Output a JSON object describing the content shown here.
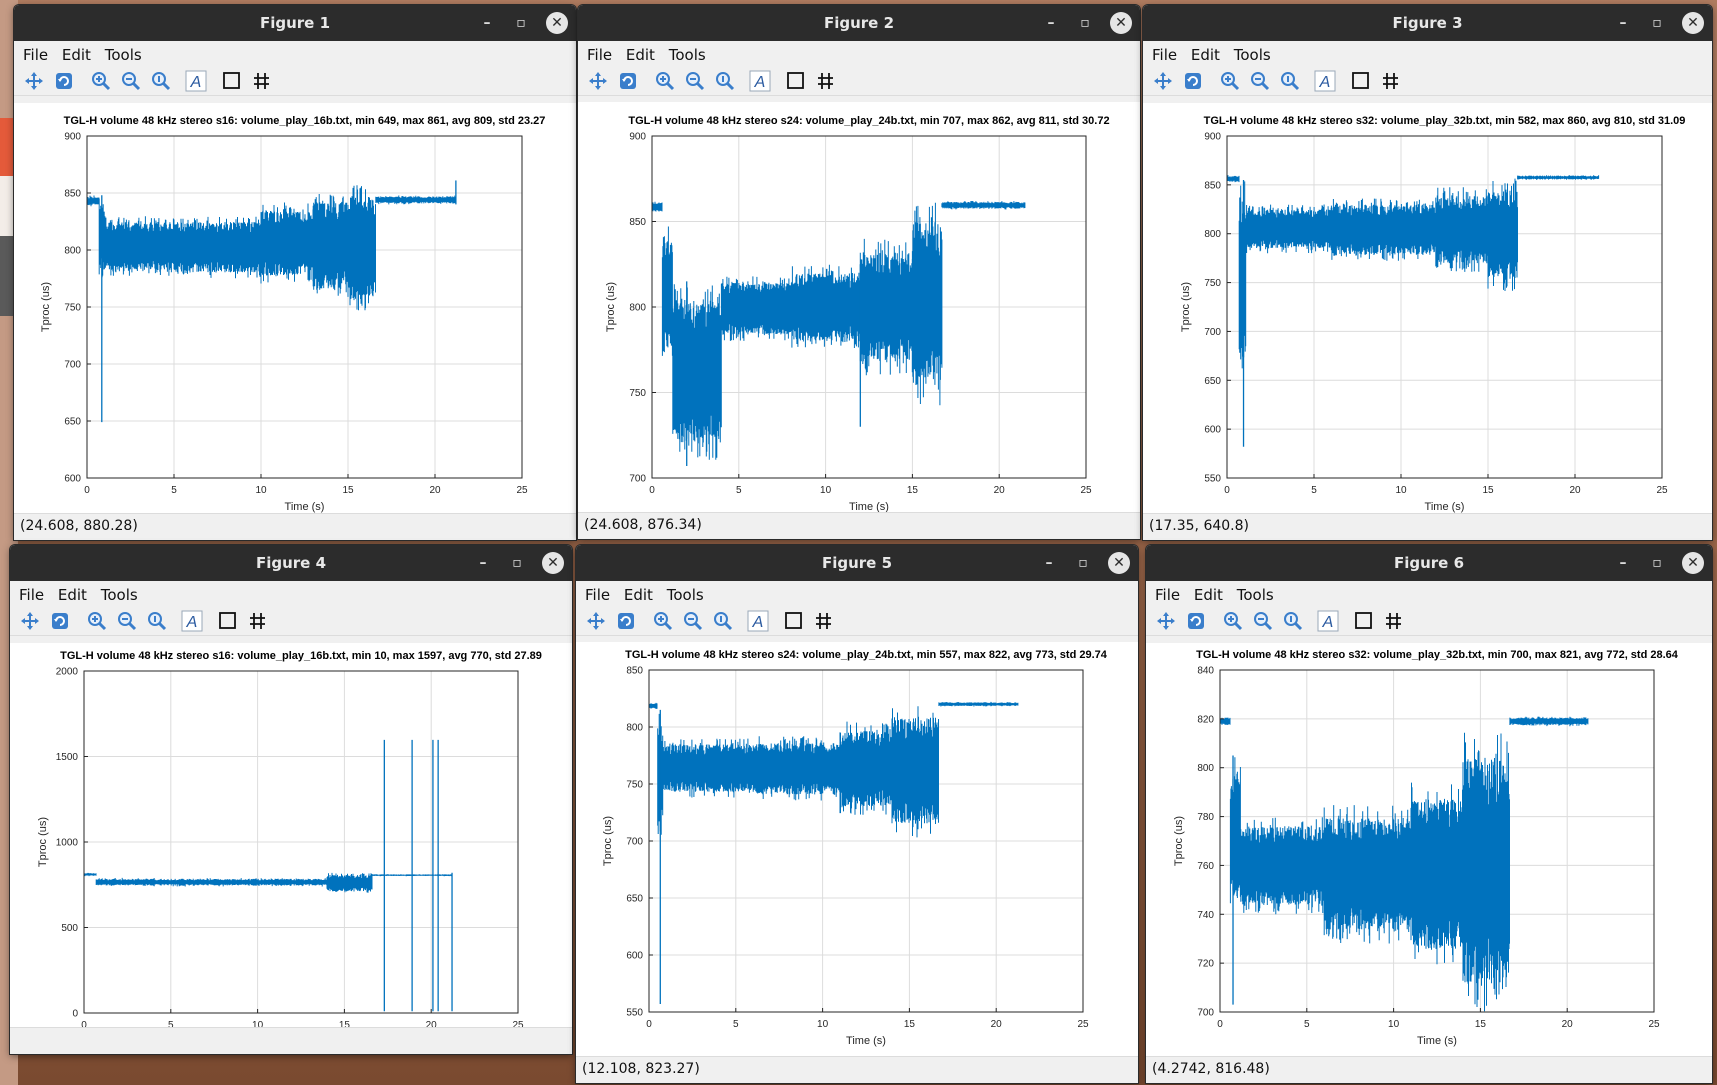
{
  "menu": {
    "file": "File",
    "edit": "Edit",
    "tools": "Tools"
  },
  "colors": {
    "series": "#0072bd",
    "titlebar": "#2c2c2c"
  },
  "figures": [
    {
      "title": "Figure 1",
      "status": "(24.608, 880.28)",
      "chart_data": {
        "type": "line",
        "title": "TGL-H volume 48 kHz stereo s16: volume_play_16b.txt, min  649, max  861, avg  809, std 23.27",
        "xlabel": "Time (s)",
        "ylabel": "Tproc (us)",
        "xlim": [
          0,
          25
        ],
        "ylim": [
          600,
          900
        ],
        "xticks": [
          0,
          5,
          10,
          15,
          20,
          25
        ],
        "yticks": [
          600,
          650,
          700,
          750,
          800,
          850,
          900
        ],
        "grid": true,
        "series": [
          {
            "segments": [
              {
                "x0": 0,
                "x1": 0.7,
                "lo": 838,
                "hi": 848
              },
              {
                "x0": 0.7,
                "x1": 1.0,
                "lo": 775,
                "hi": 848
              },
              {
                "x0": 1.0,
                "x1": 5,
                "lo": 777,
                "hi": 830
              },
              {
                "x0": 5,
                "x1": 10,
                "lo": 775,
                "hi": 830
              },
              {
                "x0": 10,
                "x1": 13,
                "lo": 770,
                "hi": 842
              },
              {
                "x0": 13,
                "x1": 15,
                "lo": 755,
                "hi": 852
              },
              {
                "x0": 15,
                "x1": 16.6,
                "lo": 745,
                "hi": 858
              },
              {
                "x0": 16.6,
                "x1": 21.2,
                "lo": 840,
                "hi": 848
              }
            ],
            "spikes": [
              {
                "x": 0.85,
                "y": 649
              },
              {
                "x": 21.2,
                "y": 861
              }
            ]
          }
        ]
      }
    },
    {
      "title": "Figure 2",
      "status": "(24.608, 876.34)",
      "chart_data": {
        "type": "line",
        "title": "TGL-H volume 48 kHz stereo s24: volume_play_24b.txt, min  707, max  862, avg  811, std 30.72",
        "xlabel": "Time (s)",
        "ylabel": "Tproc (us)",
        "xlim": [
          0,
          25
        ],
        "ylim": [
          700,
          900
        ],
        "xticks": [
          0,
          5,
          10,
          15,
          20,
          25
        ],
        "yticks": [
          700,
          750,
          800,
          850,
          900
        ],
        "grid": true,
        "series": [
          {
            "segments": [
              {
                "x0": 0,
                "x1": 0.6,
                "lo": 855,
                "hi": 862
              },
              {
                "x0": 0.6,
                "x1": 1.2,
                "lo": 765,
                "hi": 850
              },
              {
                "x0": 1.2,
                "x1": 4.0,
                "lo": 710,
                "hi": 815
              },
              {
                "x0": 4.0,
                "x1": 8,
                "lo": 780,
                "hi": 818
              },
              {
                "x0": 8,
                "x1": 12,
                "lo": 775,
                "hi": 825
              },
              {
                "x0": 12,
                "x1": 15,
                "lo": 760,
                "hi": 840
              },
              {
                "x0": 15,
                "x1": 16.7,
                "lo": 742,
                "hi": 862
              },
              {
                "x0": 16.7,
                "x1": 21.5,
                "lo": 857,
                "hi": 862
              }
            ],
            "spikes": [
              {
                "x": 2.0,
                "y": 707
              },
              {
                "x": 12.0,
                "y": 730
              }
            ]
          }
        ]
      }
    },
    {
      "title": "Figure 3",
      "status": "(17.35, 640.8)",
      "chart_data": {
        "type": "line",
        "title": "TGL-H volume 48 kHz stereo s32: volume_play_32b.txt, min  582, max  860, avg  810, std 31.09",
        "xlabel": "Time (s)",
        "ylabel": "Tproc (us)",
        "xlim": [
          0,
          25
        ],
        "ylim": [
          550,
          900
        ],
        "xticks": [
          0,
          5,
          10,
          15,
          20,
          25
        ],
        "yticks": [
          550,
          600,
          650,
          700,
          750,
          800,
          850,
          900
        ],
        "grid": true,
        "series": [
          {
            "segments": [
              {
                "x0": 0,
                "x1": 0.7,
                "lo": 852,
                "hi": 860
              },
              {
                "x0": 0.7,
                "x1": 1.1,
                "lo": 640,
                "hi": 855
              },
              {
                "x0": 1.1,
                "x1": 6,
                "lo": 780,
                "hi": 830
              },
              {
                "x0": 6,
                "x1": 12,
                "lo": 772,
                "hi": 836
              },
              {
                "x0": 12,
                "x1": 15,
                "lo": 760,
                "hi": 848
              },
              {
                "x0": 15,
                "x1": 16.7,
                "lo": 740,
                "hi": 858
              },
              {
                "x0": 16.7,
                "x1": 21.4,
                "lo": 855,
                "hi": 860
              }
            ],
            "spikes": [
              {
                "x": 0.95,
                "y": 582
              }
            ]
          }
        ]
      }
    },
    {
      "title": "Figure 4",
      "status": "",
      "chart_data": {
        "type": "line",
        "title": "TGL-H volume 48 kHz stereo s16: volume_play_16b.txt, min   10, max 1597, avg  770, std 27.89",
        "xlabel": "Time (s)",
        "ylabel": "Tproc (us)",
        "xlim": [
          0,
          25
        ],
        "ylim": [
          0,
          2000
        ],
        "xticks": [
          0,
          5,
          10,
          15,
          20,
          25
        ],
        "yticks": [
          0,
          500,
          1000,
          1500,
          2000
        ],
        "grid": true,
        "series": [
          {
            "segments": [
              {
                "x0": 0,
                "x1": 0.7,
                "lo": 800,
                "hi": 820
              },
              {
                "x0": 0.7,
                "x1": 14,
                "lo": 740,
                "hi": 790
              },
              {
                "x0": 14,
                "x1": 16.6,
                "lo": 700,
                "hi": 820
              },
              {
                "x0": 16.6,
                "x1": 21.2,
                "lo": 800,
                "hi": 812
              }
            ],
            "spikes": [
              {
                "x": 17.3,
                "y": 1597,
                "y0": 10
              },
              {
                "x": 18.9,
                "y": 1597,
                "y0": 10
              },
              {
                "x": 20.1,
                "y": 1597,
                "y0": 10
              },
              {
                "x": 20.4,
                "y": 1597,
                "y0": 10
              },
              {
                "x": 21.2,
                "y": 820,
                "y0": 10
              }
            ]
          }
        ]
      }
    },
    {
      "title": "Figure 5",
      "status": "(12.108, 823.27)",
      "chart_data": {
        "type": "line",
        "title": "TGL-H volume 48 kHz stereo s24: volume_play_24b.txt, min  557, max  822, avg  773, std 29.74",
        "xlabel": "Time (s)",
        "ylabel": "Tproc (us)",
        "xlim": [
          0,
          25
        ],
        "ylim": [
          550,
          850
        ],
        "xticks": [
          0,
          5,
          10,
          15,
          20,
          25
        ],
        "yticks": [
          550,
          600,
          650,
          700,
          750,
          800,
          850
        ],
        "grid": true,
        "series": [
          {
            "segments": [
              {
                "x0": 0,
                "x1": 0.5,
                "lo": 815,
                "hi": 822
              },
              {
                "x0": 0.5,
                "x1": 0.8,
                "lo": 700,
                "hi": 815
              },
              {
                "x0": 0.8,
                "x1": 6,
                "lo": 738,
                "hi": 790
              },
              {
                "x0": 6,
                "x1": 11,
                "lo": 735,
                "hi": 792
              },
              {
                "x0": 11,
                "x1": 14,
                "lo": 722,
                "hi": 805
              },
              {
                "x0": 14,
                "x1": 16.7,
                "lo": 703,
                "hi": 820
              },
              {
                "x0": 16.7,
                "x1": 21.3,
                "lo": 818,
                "hi": 822
              }
            ],
            "spikes": [
              {
                "x": 0.65,
                "y": 557
              }
            ]
          }
        ]
      }
    },
    {
      "title": "Figure 6",
      "status": "(4.2742, 816.48)",
      "chart_data": {
        "type": "line",
        "title": "TGL-H volume 48 kHz stereo s32: volume_play_32b.txt, min  700, max  821, avg  772, std 28.64",
        "xlabel": "Time (s)",
        "ylabel": "Tproc (us)",
        "xlim": [
          0,
          25
        ],
        "ylim": [
          700,
          840
        ],
        "xticks": [
          0,
          5,
          10,
          15,
          20,
          25
        ],
        "yticks": [
          700,
          720,
          740,
          760,
          780,
          800,
          820,
          840
        ],
        "grid": true,
        "series": [
          {
            "segments": [
              {
                "x0": 0,
                "x1": 0.6,
                "lo": 817,
                "hi": 821
              },
              {
                "x0": 0.6,
                "x1": 1.2,
                "lo": 740,
                "hi": 805
              },
              {
                "x0": 1.2,
                "x1": 6,
                "lo": 740,
                "hi": 780
              },
              {
                "x0": 6,
                "x1": 11,
                "lo": 728,
                "hi": 785
              },
              {
                "x0": 11,
                "x1": 14,
                "lo": 718,
                "hi": 795
              },
              {
                "x0": 14,
                "x1": 16.7,
                "lo": 700,
                "hi": 815
              },
              {
                "x0": 16.7,
                "x1": 21.2,
                "lo": 817,
                "hi": 821
              }
            ],
            "spikes": [
              {
                "x": 0.75,
                "y": 703
              }
            ]
          }
        ]
      }
    }
  ]
}
